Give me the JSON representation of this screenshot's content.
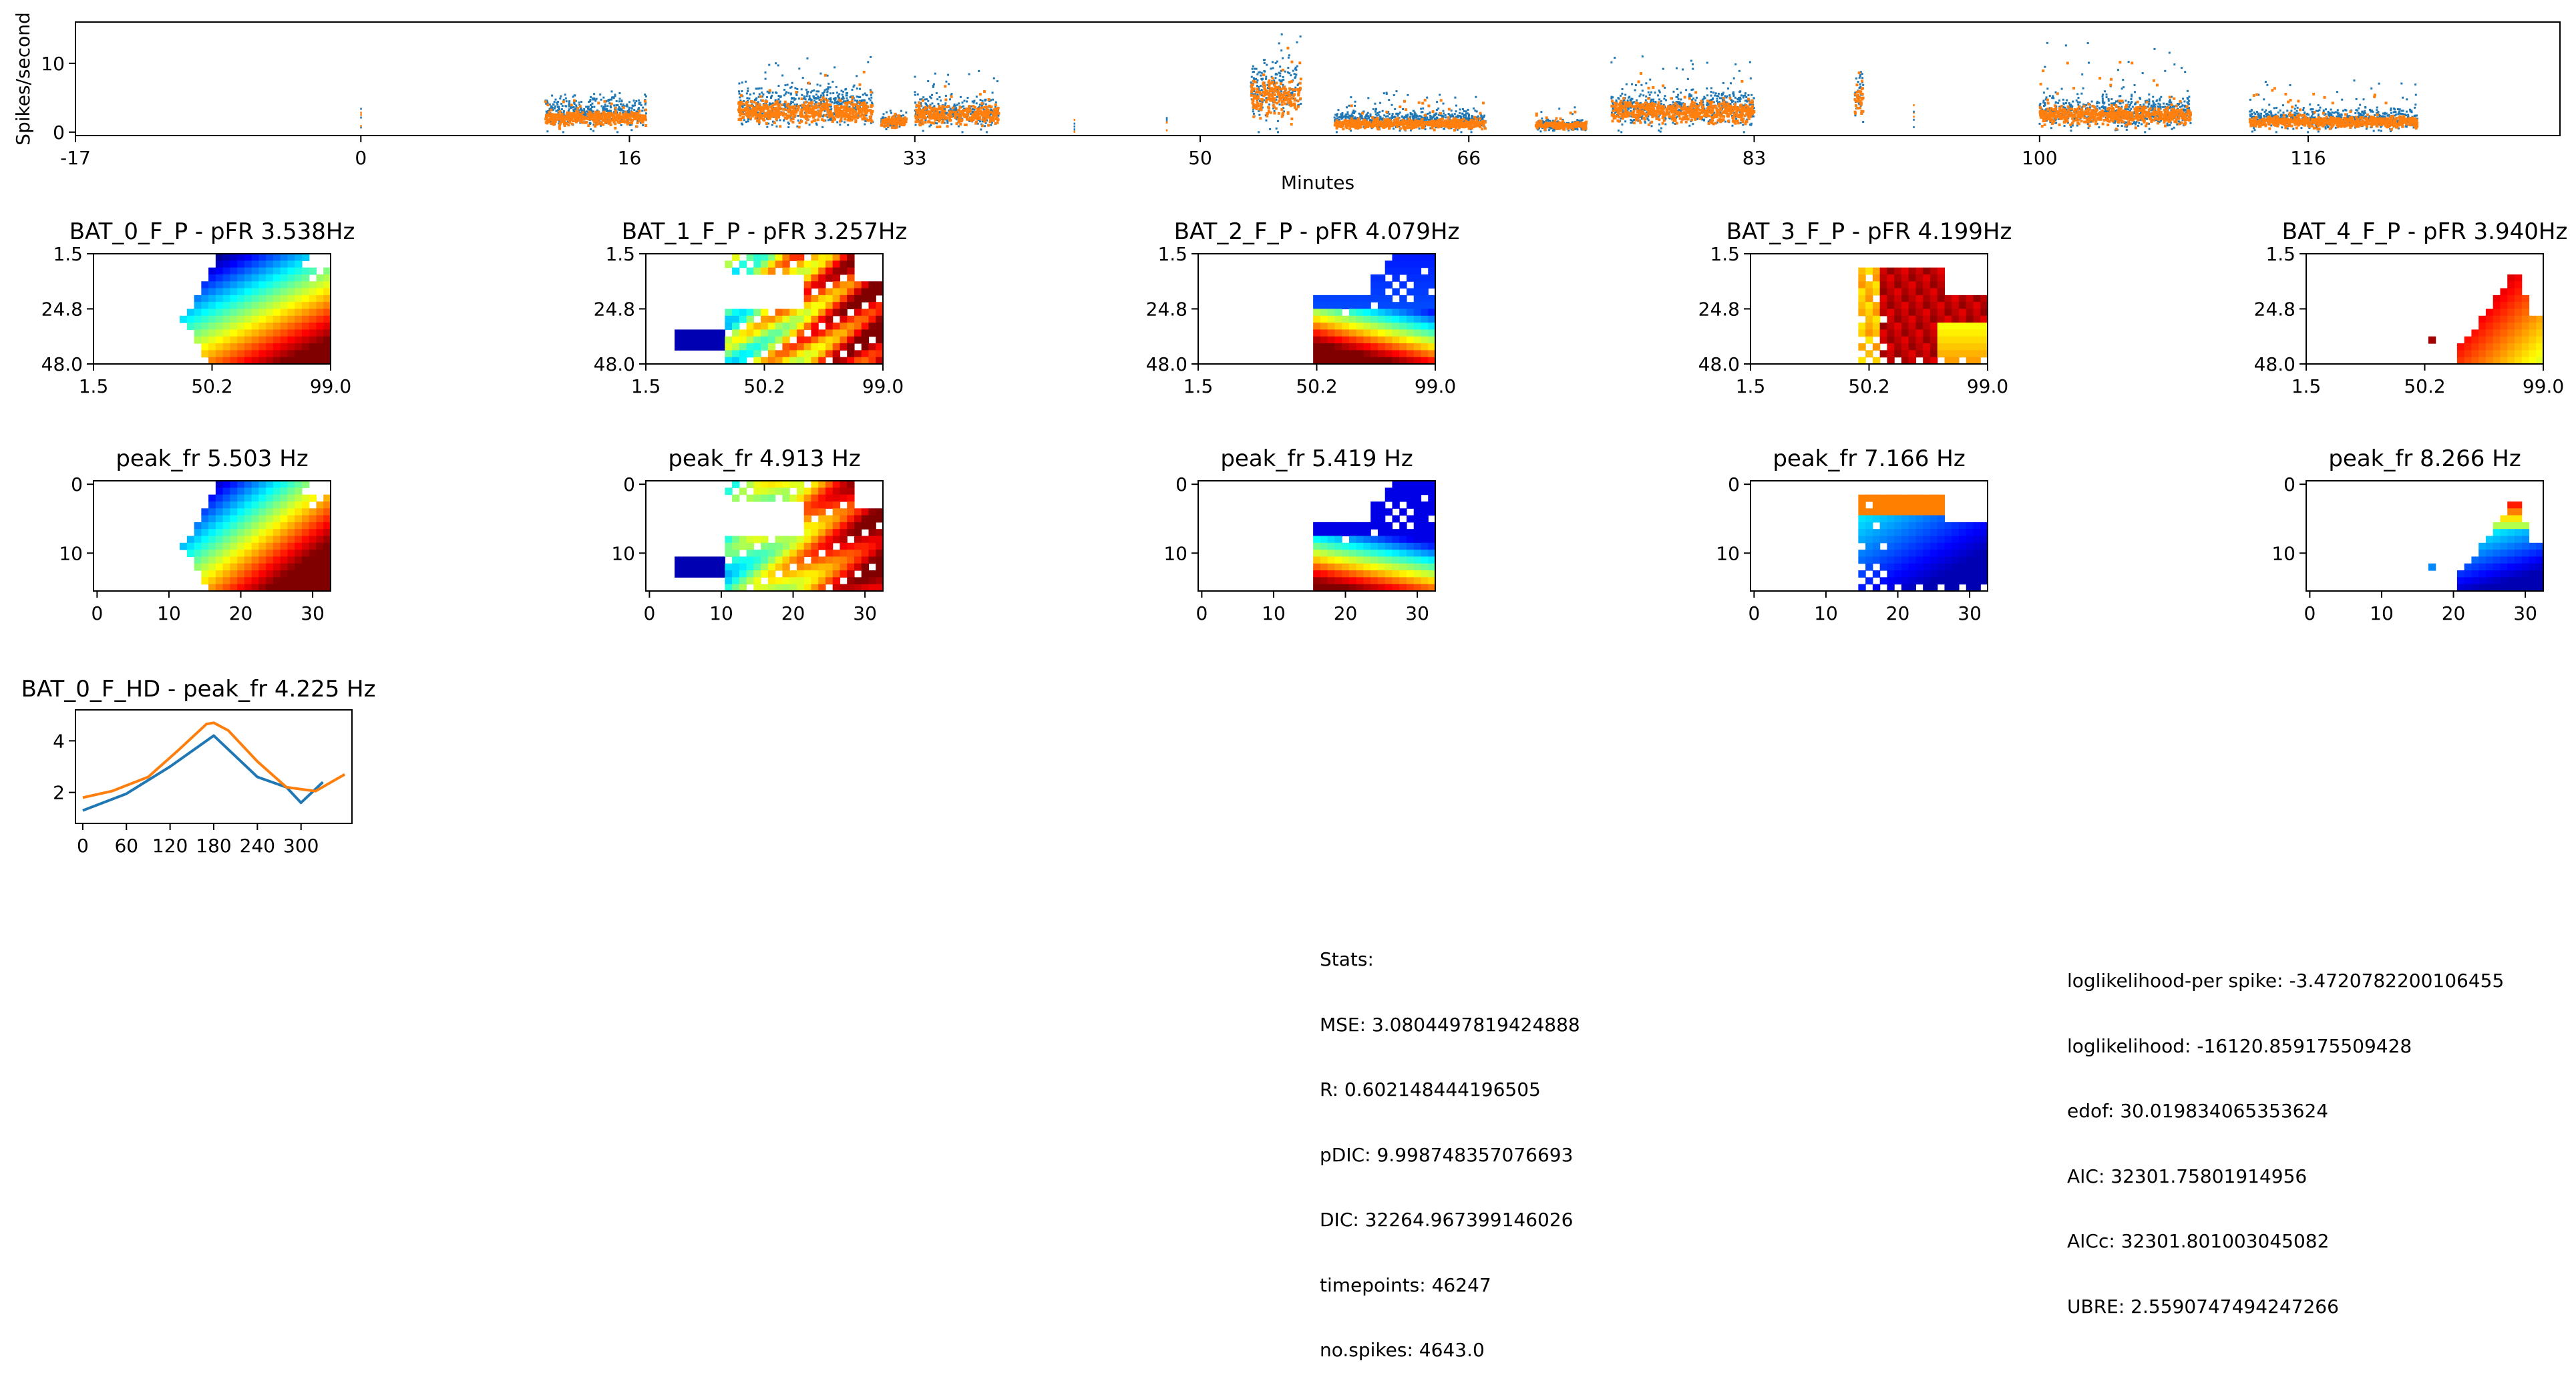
{
  "timeline": {
    "ylabel": "Spikes/second",
    "xlabel": "Minutes",
    "xlim": [
      -17,
      131
    ],
    "ylim": [
      -0.5,
      16
    ],
    "xticks": [
      "-17",
      "0",
      "16",
      "33",
      "50",
      "66",
      "83",
      "100",
      "116"
    ],
    "yticks": [
      "0",
      "10"
    ],
    "colors": {
      "blue": "#1f77b4",
      "orange": "#ff7f0e"
    }
  },
  "place_fields": [
    {
      "title": "BAT_0_F_P - pFR 3.538Hz"
    },
    {
      "title": "BAT_1_F_P - pFR 3.257Hz"
    },
    {
      "title": "BAT_2_F_P - pFR 4.079Hz"
    },
    {
      "title": "BAT_3_F_P - pFR 4.199Hz"
    },
    {
      "title": "BAT_4_F_P - pFR 3.940Hz"
    }
  ],
  "place_axes": {
    "xticks": [
      "1.5",
      "50.2",
      "99.0"
    ],
    "yticks": [
      "1.5",
      "24.8",
      "48.0"
    ]
  },
  "peak_maps": [
    {
      "title": "peak_fr 5.503 Hz"
    },
    {
      "title": "peak_fr 4.913 Hz"
    },
    {
      "title": "peak_fr 5.419 Hz"
    },
    {
      "title": "peak_fr 7.166 Hz"
    },
    {
      "title": "peak_fr 8.266 Hz"
    }
  ],
  "peak_axes": {
    "xticks": [
      "0",
      "10",
      "20",
      "30"
    ],
    "yticks": [
      "0",
      "10"
    ]
  },
  "hd_plot": {
    "title": "BAT_0_F_HD - peak_fr 4.225 Hz",
    "xticks": [
      "0",
      "60",
      "120",
      "180",
      "240",
      "300"
    ],
    "yticks": [
      "2",
      "4"
    ]
  },
  "chart_data": [
    {
      "type": "scatter",
      "title": "",
      "xlabel": "Minutes",
      "ylabel": "Spikes/second",
      "x_range": [
        -17,
        131
      ],
      "y_range": [
        -0.5,
        16
      ],
      "active_segments": [
        {
          "x": [
            11,
            17
          ],
          "y_blue": 3,
          "y_orange": 2,
          "peak": 6
        },
        {
          "x": [
            22.5,
            30.5
          ],
          "y_blue": 4,
          "y_orange": 3,
          "peak": 11
        },
        {
          "x": [
            31,
            32.5
          ],
          "y_blue": 1.5,
          "y_orange": 1.5,
          "peak": 4
        },
        {
          "x": [
            33,
            38
          ],
          "y_blue": 3,
          "y_orange": 2.5,
          "peak": 9
        },
        {
          "x": [
            53,
            56
          ],
          "y_blue": 6,
          "y_orange": 5,
          "peak": 15.5
        },
        {
          "x": [
            58,
            67
          ],
          "y_blue": 1.8,
          "y_orange": 1.2,
          "peak": 6
        },
        {
          "x": [
            70,
            73
          ],
          "y_blue": 1,
          "y_orange": 1,
          "peak": 4
        },
        {
          "x": [
            74.5,
            83
          ],
          "y_blue": 3.5,
          "y_orange": 3,
          "peak": 11
        },
        {
          "x": [
            89,
            89.5
          ],
          "y_blue": 6,
          "y_orange": 5,
          "peak": 10
        },
        {
          "x": [
            100,
            109
          ],
          "y_blue": 3,
          "y_orange": 2.5,
          "peak": 13
        },
        {
          "x": [
            112.5,
            122.5
          ],
          "y_blue": 2,
          "y_orange": 1.5,
          "peak": 8
        }
      ],
      "sparse_points": [
        {
          "x": 0,
          "y": 4.5
        },
        {
          "x": 42.5,
          "y": 2.5
        },
        {
          "x": 48,
          "y": 3
        },
        {
          "x": 92.5,
          "y": 5.5
        }
      ]
    },
    {
      "type": "heatmap",
      "title": "BAT_0_F_P - pFR 3.538Hz",
      "xlim": [
        1.5,
        99.0
      ],
      "ylim": [
        48.0,
        1.5
      ]
    },
    {
      "type": "heatmap",
      "title": "BAT_1_F_P - pFR 3.257Hz",
      "xlim": [
        1.5,
        99.0
      ],
      "ylim": [
        48.0,
        1.5
      ]
    },
    {
      "type": "heatmap",
      "title": "BAT_2_F_P - pFR 4.079Hz",
      "xlim": [
        1.5,
        99.0
      ],
      "ylim": [
        48.0,
        1.5
      ]
    },
    {
      "type": "heatmap",
      "title": "BAT_3_F_P - pFR 4.199Hz",
      "xlim": [
        1.5,
        99.0
      ],
      "ylim": [
        48.0,
        1.5
      ]
    },
    {
      "type": "heatmap",
      "title": "BAT_4_F_P - pFR 3.940Hz",
      "xlim": [
        1.5,
        99.0
      ],
      "ylim": [
        48.0,
        1.5
      ]
    },
    {
      "type": "heatmap",
      "title": "peak_fr 5.503 Hz",
      "xlim": [
        -0.5,
        32.5
      ],
      "ylim": [
        15.5,
        -0.5
      ]
    },
    {
      "type": "heatmap",
      "title": "peak_fr 4.913 Hz",
      "xlim": [
        -0.5,
        32.5
      ],
      "ylim": [
        15.5,
        -0.5
      ]
    },
    {
      "type": "heatmap",
      "title": "peak_fr 5.419 Hz",
      "xlim": [
        -0.5,
        32.5
      ],
      "ylim": [
        15.5,
        -0.5
      ]
    },
    {
      "type": "heatmap",
      "title": "peak_fr 7.166 Hz",
      "xlim": [
        -0.5,
        32.5
      ],
      "ylim": [
        15.5,
        -0.5
      ]
    },
    {
      "type": "heatmap",
      "title": "peak_fr 8.266 Hz",
      "xlim": [
        -0.5,
        32.5
      ],
      "ylim": [
        15.5,
        -0.5
      ]
    },
    {
      "type": "line",
      "title": "BAT_0_F_HD - peak_fr 4.225 Hz",
      "x_range": [
        -10,
        370
      ],
      "y_range": [
        0.8,
        5.2
      ],
      "series": [
        {
          "x": [
            0,
            60,
            120,
            180,
            240,
            280,
            300,
            330
          ],
          "values": [
            1.3,
            1.95,
            3.0,
            4.2,
            2.6,
            2.2,
            1.6,
            2.4
          ]
        },
        {
          "x": [
            0,
            40,
            90,
            130,
            170,
            180,
            200,
            240,
            280,
            320,
            360
          ],
          "values": [
            1.8,
            2.05,
            2.6,
            3.6,
            4.65,
            4.7,
            4.4,
            3.2,
            2.2,
            2.05,
            2.7
          ]
        }
      ]
    }
  ],
  "stats_left": [
    "Stats:",
    "MSE: 3.0804497819424888",
    "R: 0.602148444196505",
    "pDIC: 9.998748357076693",
    "DIC: 32264.967399146026",
    "timepoints: 46247",
    "no.spikes: 4643.0"
  ],
  "stats_right": [
    "loglikelihood-per spike: -3.4720782200106455",
    "loglikelihood: -16120.859175509428",
    "edof: 30.019834065353624",
    "AIC: 32301.75801914956",
    "AICc: 32301.801003045082",
    "UBRE: 2.5590747494247266"
  ]
}
